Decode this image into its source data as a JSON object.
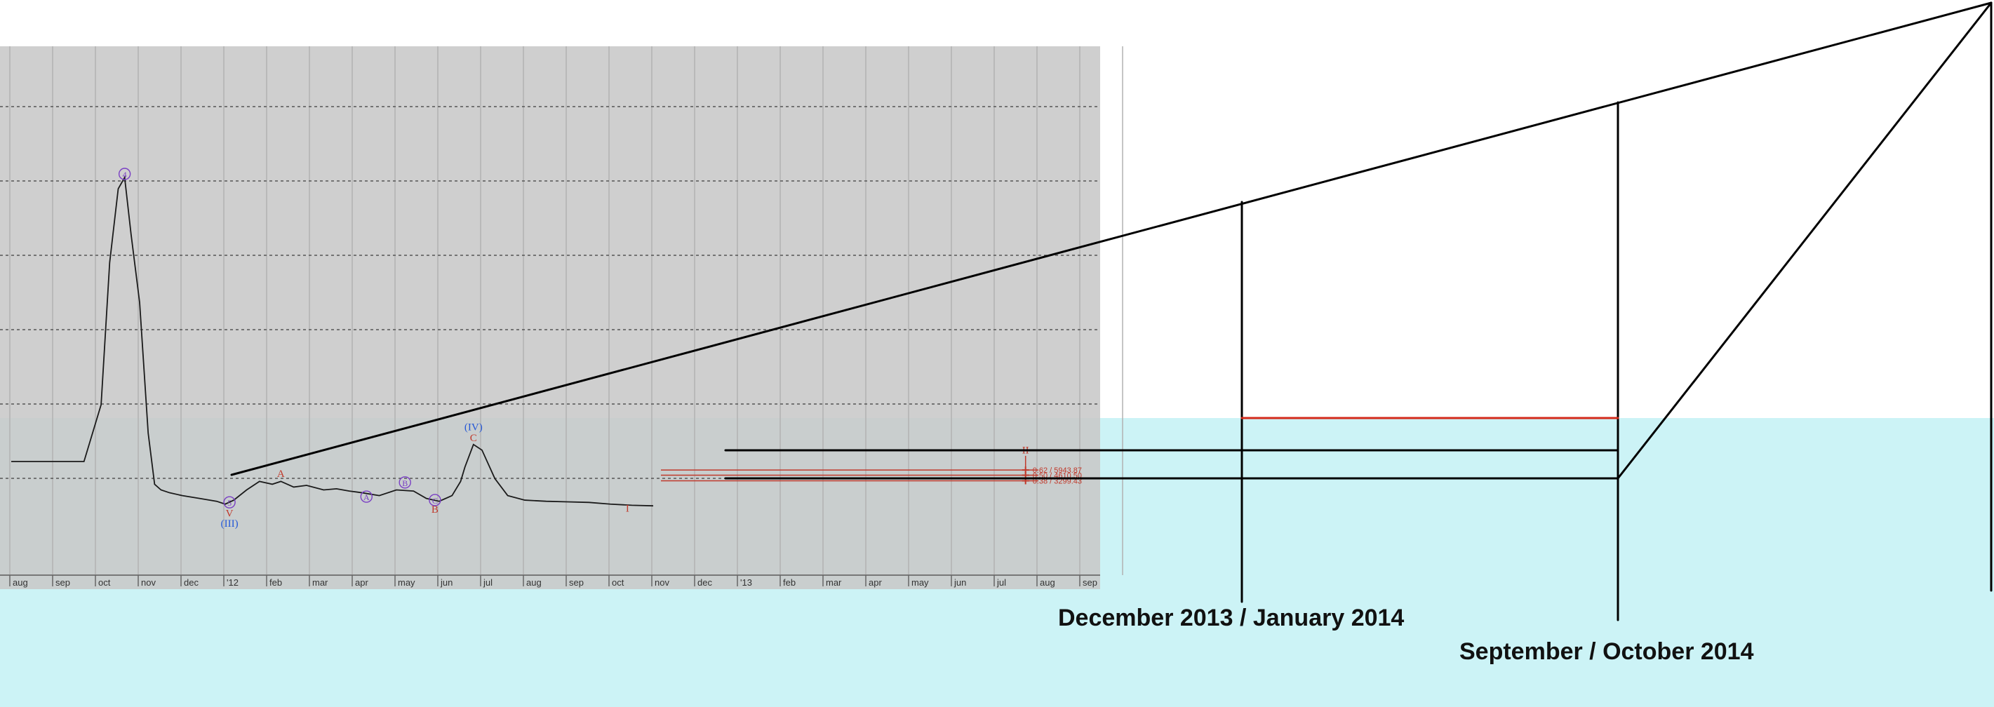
{
  "colors": {
    "chart_background": "#c8c8c8",
    "cyan_zone": "#ccf3f6",
    "price_line": "#1a1a1a",
    "projection_line": "#000000",
    "fib_lines": "#c0392b",
    "red_target_line": "#d42a1a",
    "wave_label_red": "#c0392b",
    "wave_label_purple": "#7a3fc4",
    "wave_label_blue": "#2457d6"
  },
  "icons": {
    "wave_circle_marker": "circled-letter-icon",
    "fib_cross_marker": "crosshair-icon"
  },
  "captions": {
    "first_target": "December 2013 / January 2014",
    "second_target": "September / October 2014"
  },
  "chart_data": {
    "type": "line",
    "title": "",
    "xlabel": "",
    "ylabel": "",
    "grid": true,
    "x_tick_labels": [
      "aug",
      "sep",
      "oct",
      "nov",
      "dec",
      "'12",
      "feb",
      "mar",
      "apr",
      "may",
      "jun",
      "jul",
      "aug",
      "sep",
      "oct",
      "nov",
      "dec",
      "'13",
      "feb",
      "mar",
      "apr",
      "may",
      "jun",
      "jul",
      "aug",
      "sep"
    ],
    "series": [
      {
        "x": [
          0,
          1.7,
          2.1,
          2.3,
          2.5,
          2.65,
          2.8,
          3.0,
          3.2,
          3.35,
          3.5,
          3.7,
          4.0,
          4.4,
          4.8,
          5.0,
          5.2,
          5.5,
          5.8,
          6.1,
          6.3,
          6.6,
          6.9,
          7.3,
          7.6,
          7.9,
          8.2,
          8.6,
          9.0,
          9.4,
          9.7,
          10.0,
          10.3,
          10.5,
          10.6,
          10.8,
          11.0,
          11.3,
          11.6,
          12.0,
          12.5,
          13.0,
          13.5,
          14.0,
          14.5,
          15.0
        ],
        "values": [
          20,
          20,
          30,
          55,
          68,
          70,
          60,
          48,
          25,
          16,
          15,
          14.5,
          14,
          13.5,
          13,
          12.5,
          13.2,
          15,
          16.5,
          16,
          16.5,
          15.5,
          15.8,
          15,
          15.2,
          14.8,
          14.5,
          14,
          15,
          14.8,
          13.5,
          13,
          14,
          16.5,
          19,
          23,
          22,
          17,
          14,
          13.2,
          13,
          12.9,
          12.8,
          12.5,
          12.3,
          12.2
        ]
      }
    ],
    "wave_labels": [
      {
        "text": "4",
        "style": "circled",
        "color": "purple",
        "x": 2.65,
        "y": 70
      },
      {
        "text": "A",
        "color": "red",
        "x": 6.3,
        "y": 17.3
      },
      {
        "text": "(IV)",
        "color": "blue",
        "x": 10.8,
        "y": 25.5
      },
      {
        "text": "C",
        "color": "red",
        "x": 10.8,
        "y": 23.6
      },
      {
        "text": "5",
        "style": "circled",
        "color": "purple",
        "x": 5.1,
        "y": 12.2
      },
      {
        "text": "V",
        "color": "red",
        "x": 5.1,
        "y": 10.3
      },
      {
        "text": "(III)",
        "color": "blue",
        "x": 5.1,
        "y": 8.5
      },
      {
        "text": "A",
        "style": "circled",
        "color": "purple",
        "x": 8.3,
        "y": 13.2
      },
      {
        "text": "B",
        "style": "circled",
        "color": "purple",
        "x": 9.2,
        "y": 15.7
      },
      {
        "text": "C",
        "style": "circled",
        "color": "purple",
        "x": 9.9,
        "y": 12.6
      },
      {
        "text": "B",
        "color": "red",
        "x": 9.9,
        "y": 11.0
      },
      {
        "text": "I",
        "color": "red",
        "x": 14.4,
        "y": 11.2
      },
      {
        "text": "II",
        "color": "red",
        "x": 23.7,
        "y": 21.4
      }
    ],
    "fib_levels": [
      {
        "label": "0.62 / 5943.87",
        "value": 18.5
      },
      {
        "label": "0.50 / 4610.50",
        "value": 17.6
      },
      {
        "label": "0.38 / 3299.43",
        "value": 16.6
      }
    ]
  }
}
